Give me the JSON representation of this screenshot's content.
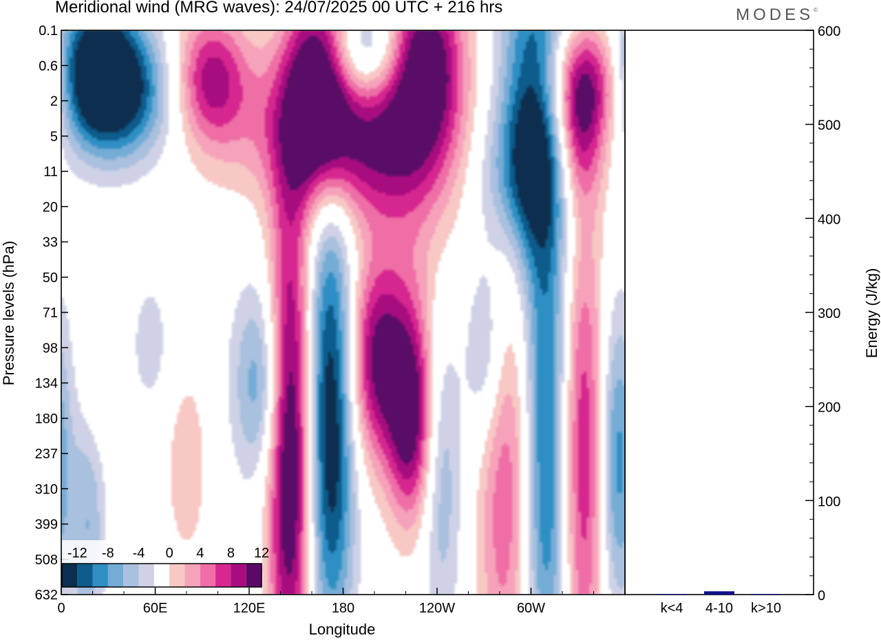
{
  "title": "Meridional wind (MRG waves):  24/07/2025  00 UTC  + 216 hrs",
  "brand": "MODES",
  "brand_mark": "©",
  "colors": {
    "neg": [
      "#0a2f4f",
      "#0d5c8c",
      "#2f8fc4",
      "#74acd6",
      "#a9c0de",
      "#cfd2e6"
    ],
    "zero": "#ffffff",
    "pos": [
      "#f8c8c4",
      "#f6a2ba",
      "#ef6ea6",
      "#d6288f",
      "#a80c80",
      "#5a0a66"
    ],
    "bar": "#10108a"
  },
  "chart_data": [
    {
      "type": "heatmap",
      "title": "Meridional wind (MRG waves)",
      "xlabel": "Longitude",
      "ylabel": "Pressure levels (hPa)",
      "x_ticks": [
        "0",
        "60E",
        "120E",
        "180",
        "120W",
        "60W"
      ],
      "x_tick_values": [
        0,
        60,
        120,
        180,
        240,
        300
      ],
      "xlim": [
        0,
        360
      ],
      "y_ticks": [
        "0.1",
        "0.6",
        "2",
        "5",
        "11",
        "20",
        "33",
        "50",
        "71",
        "98",
        "134",
        "180",
        "237",
        "310",
        "399",
        "508",
        "632"
      ],
      "colorbar": {
        "labels": [
          "-12",
          "-8",
          "-4",
          "0",
          "4",
          "8",
          "12"
        ],
        "levels": [
          -14,
          -12,
          -10,
          -8,
          -6,
          -4,
          -2,
          2,
          4,
          6,
          8,
          10,
          12,
          14
        ]
      },
      "features": [
        {
          "sign": -1,
          "lon": 22,
          "level": 0.6,
          "lon_w": 20,
          "lev_w": 1.4,
          "amp": 15
        },
        {
          "sign": -1,
          "lon": 38,
          "level": 1.8,
          "lon_w": 25,
          "lev_w": 1.3,
          "amp": 10
        },
        {
          "sign": 1,
          "lon": 95,
          "level": 0.9,
          "lon_w": 16,
          "lev_w": 1.3,
          "amp": 10
        },
        {
          "sign": 1,
          "lon": 165,
          "level": 0.8,
          "lon_w": 14,
          "lev_w": 2.0,
          "amp": 14
        },
        {
          "sign": 1,
          "lon": 150,
          "level": 3.0,
          "lon_w": 45,
          "lev_w": 1.6,
          "amp": 5
        },
        {
          "sign": -1,
          "lon": 195,
          "level": 0.3,
          "lon_w": 20,
          "lev_w": 1.0,
          "amp": 8
        },
        {
          "sign": 1,
          "lon": 232,
          "level": 0.4,
          "lon_w": 17,
          "lev_w": 1.6,
          "amp": 14
        },
        {
          "sign": 1,
          "lon": 200,
          "level": 6.5,
          "lon_w": 38,
          "lev_w": 1.5,
          "amp": 9
        },
        {
          "sign": -1,
          "lon": 302,
          "level": 2.2,
          "lon_w": 16,
          "lev_w": 3.5,
          "amp": 13
        },
        {
          "sign": -1,
          "lon": 290,
          "level": 11,
          "lon_w": 22,
          "lev_w": 1.5,
          "amp": 6
        },
        {
          "sign": 1,
          "lon": 338,
          "level": 1.0,
          "lon_w": 22,
          "lev_w": 1.2,
          "amp": 10
        },
        {
          "sign": 1,
          "lon": 330,
          "level": 5.0,
          "lon_w": 12,
          "lev_w": 1.5,
          "amp": 9
        },
        {
          "sign": 1,
          "lon": 228,
          "level": 30,
          "lon_w": 22,
          "lev_w": 4,
          "amp": 3.5
        },
        {
          "sign": -1,
          "lon": 128,
          "level": 134,
          "lon_w": 13,
          "lev_w": 2.0,
          "amp": 8
        },
        {
          "sign": 1,
          "lon": 146,
          "level": 210,
          "lon_w": 10,
          "lev_w": 5.0,
          "amp": 17
        },
        {
          "sign": -1,
          "lon": 172,
          "level": 180,
          "lon_w": 11,
          "lev_w": 4.5,
          "amp": 15
        },
        {
          "sign": 1,
          "lon": 202,
          "level": 110,
          "lon_w": 14,
          "lev_w": 2.0,
          "amp": 12
        },
        {
          "sign": 1,
          "lon": 223,
          "level": 185,
          "lon_w": 10,
          "lev_w": 2.0,
          "amp": 12
        },
        {
          "sign": -1,
          "lon": 243,
          "level": 260,
          "lon_w": 9,
          "lev_w": 3.5,
          "amp": 6
        },
        {
          "sign": -1,
          "lon": 272,
          "level": 100,
          "lon_w": 10,
          "lev_w": 2.0,
          "amp": 7
        },
        {
          "sign": 1,
          "lon": 283,
          "level": 250,
          "lon_w": 12,
          "lev_w": 5.0,
          "amp": 8
        },
        {
          "sign": -1,
          "lon": 310,
          "level": 250,
          "lon_w": 10,
          "lev_w": 5.0,
          "amp": 11
        },
        {
          "sign": 1,
          "lon": 333,
          "level": 235,
          "lon_w": 10,
          "lev_w": 5.0,
          "amp": 10
        },
        {
          "sign": -1,
          "lon": 355,
          "level": 250,
          "lon_w": 8,
          "lev_w": 3.0,
          "amp": 9
        },
        {
          "sign": -1,
          "lon": 17,
          "level": 370,
          "lon_w": 8,
          "lev_w": 3.0,
          "amp": 6
        },
        {
          "sign": 1,
          "lon": 80,
          "level": 260,
          "lon_w": 10,
          "lev_w": 2.0,
          "amp": 3.5
        },
        {
          "sign": -1,
          "lon": 57,
          "level": 95,
          "lon_w": 10,
          "lev_w": 1.5,
          "amp": 3
        },
        {
          "sign": 1,
          "lon": 20,
          "level": 150,
          "lon_w": 8,
          "lev_w": 1.5,
          "amp": 3
        }
      ]
    },
    {
      "type": "bar",
      "categories": [
        "k<4",
        "4-10",
        "k>10"
      ],
      "values": [
        0.5,
        3.5,
        0.4
      ],
      "ylabel": "Energy (J/kg)",
      "y_ticks": [
        "0",
        "100",
        "200",
        "300",
        "400",
        "500",
        "600"
      ],
      "ylim": [
        0,
        600
      ]
    }
  ]
}
